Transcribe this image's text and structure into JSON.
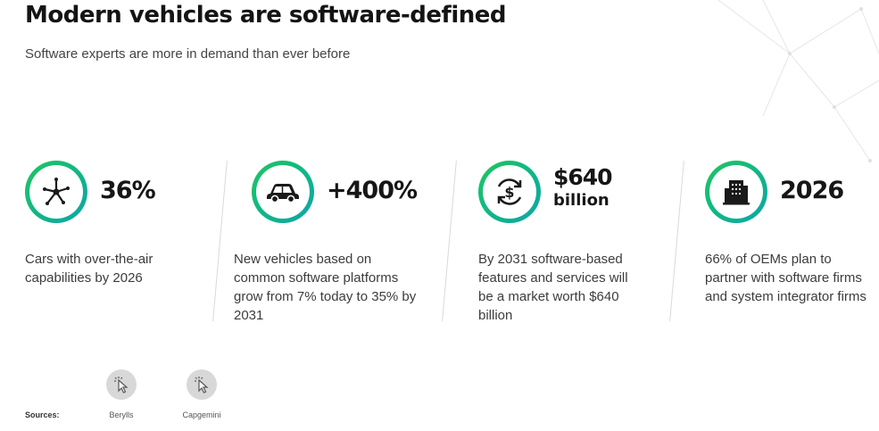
{
  "header": {
    "title": "Modern vehicles are software-defined",
    "subtitle": "Software experts are more in demand than ever before"
  },
  "stats": [
    {
      "icon": "network-icon",
      "value": "36%",
      "value_sub": "",
      "description": "Cars with over-the-air capabilities by 2026"
    },
    {
      "icon": "car-icon",
      "value": "+400%",
      "value_sub": "",
      "description": "New vehicles based on common software platforms grow from 7% today to 35% by 2031"
    },
    {
      "icon": "dollar-refresh-icon",
      "value": "$640",
      "value_sub": "billion",
      "description": "By 2031 software-based features and services will be a market worth $640 billion"
    },
    {
      "icon": "building-icon",
      "value": "2026",
      "value_sub": "",
      "description": "66% of OEMs plan to partner with software firms and system integrator firms"
    }
  ],
  "sources": {
    "label": "Sources:",
    "items": [
      {
        "label": "Berylls",
        "icon": "cursor-click-icon"
      },
      {
        "label": "Capgemini",
        "icon": "cursor-click-icon"
      }
    ]
  },
  "colors": {
    "accent_start": "#22c55e",
    "accent_end": "#0ea5a8",
    "title": "#141414"
  }
}
